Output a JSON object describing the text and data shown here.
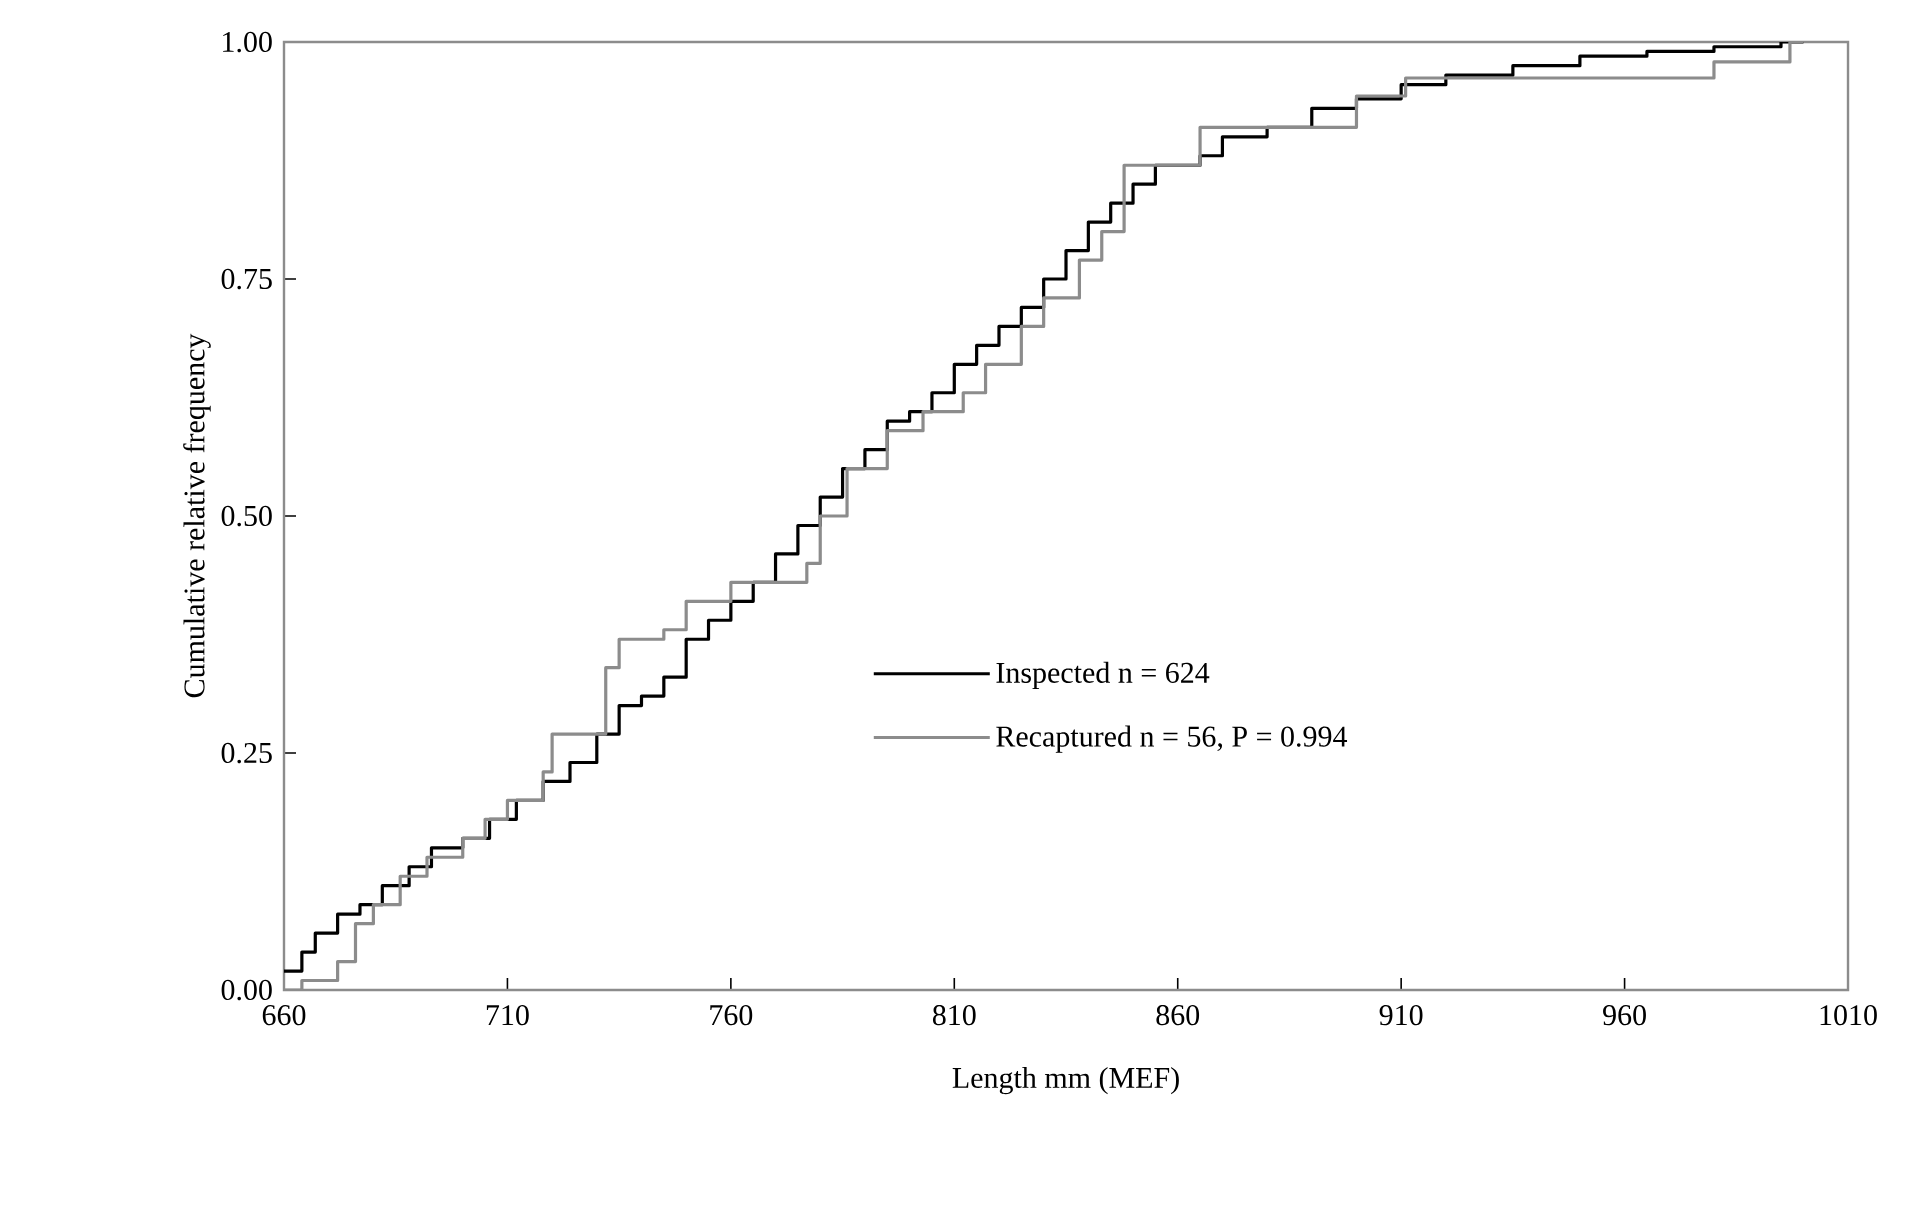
{
  "chart_data": {
    "type": "step",
    "xlabel": "Length mm (MEF)",
    "ylabel": "Cumulative relative frequency",
    "xlim": [
      660,
      1010
    ],
    "ylim": [
      0,
      1
    ],
    "xticks": [
      660,
      710,
      760,
      810,
      860,
      910,
      960,
      1010
    ],
    "yticks": [
      {
        "value": 0,
        "label": "0.00"
      },
      {
        "value": 0.25,
        "label": "0.25"
      },
      {
        "value": 0.5,
        "label": "0.50"
      },
      {
        "value": 0.75,
        "label": "0.75"
      },
      {
        "value": 1,
        "label": "1.00"
      }
    ],
    "legend": "right",
    "grid": false,
    "marker": "none",
    "line_style": "solid",
    "series": [
      {
        "name": "Inspected n = 624",
        "color": "#000000",
        "x": [
          660,
          664,
          667,
          672,
          677,
          682,
          688,
          693,
          700,
          706,
          712,
          718,
          724,
          730,
          735,
          740,
          745,
          750,
          755,
          760,
          765,
          770,
          775,
          780,
          785,
          790,
          795,
          800,
          805,
          810,
          815,
          820,
          825,
          830,
          835,
          840,
          845,
          850,
          855,
          865,
          870,
          880,
          890,
          900,
          910,
          920,
          935,
          950,
          965,
          980,
          995,
          1000
        ],
        "values": [
          0.02,
          0.04,
          0.06,
          0.08,
          0.09,
          0.11,
          0.13,
          0.15,
          0.16,
          0.18,
          0.2,
          0.22,
          0.24,
          0.27,
          0.3,
          0.31,
          0.33,
          0.37,
          0.39,
          0.41,
          0.43,
          0.46,
          0.49,
          0.52,
          0.55,
          0.57,
          0.6,
          0.61,
          0.63,
          0.66,
          0.68,
          0.7,
          0.72,
          0.75,
          0.78,
          0.81,
          0.83,
          0.85,
          0.87,
          0.88,
          0.9,
          0.91,
          0.93,
          0.94,
          0.955,
          0.965,
          0.975,
          0.985,
          0.99,
          0.995,
          1.0,
          1.0
        ]
      },
      {
        "name": "Recaptured n = 56, P = 0.994",
        "color": "#8c8c8c",
        "x": [
          660,
          664,
          672,
          676,
          680,
          686,
          692,
          700,
          705,
          710,
          718,
          720,
          732,
          735,
          745,
          750,
          760,
          770,
          777,
          780,
          786,
          795,
          803,
          812,
          817,
          825,
          830,
          838,
          843,
          848,
          860,
          865,
          880,
          900,
          911,
          980,
          997,
          1000
        ],
        "values": [
          0,
          0.01,
          0.03,
          0.07,
          0.09,
          0.12,
          0.14,
          0.16,
          0.18,
          0.2,
          0.23,
          0.27,
          0.34,
          0.37,
          0.38,
          0.41,
          0.43,
          0.43,
          0.45,
          0.5,
          0.55,
          0.59,
          0.61,
          0.63,
          0.66,
          0.7,
          0.73,
          0.77,
          0.8,
          0.87,
          0.87,
          0.91,
          0.91,
          0.943,
          0.962,
          0.979,
          1.0,
          1.0
        ]
      }
    ]
  }
}
